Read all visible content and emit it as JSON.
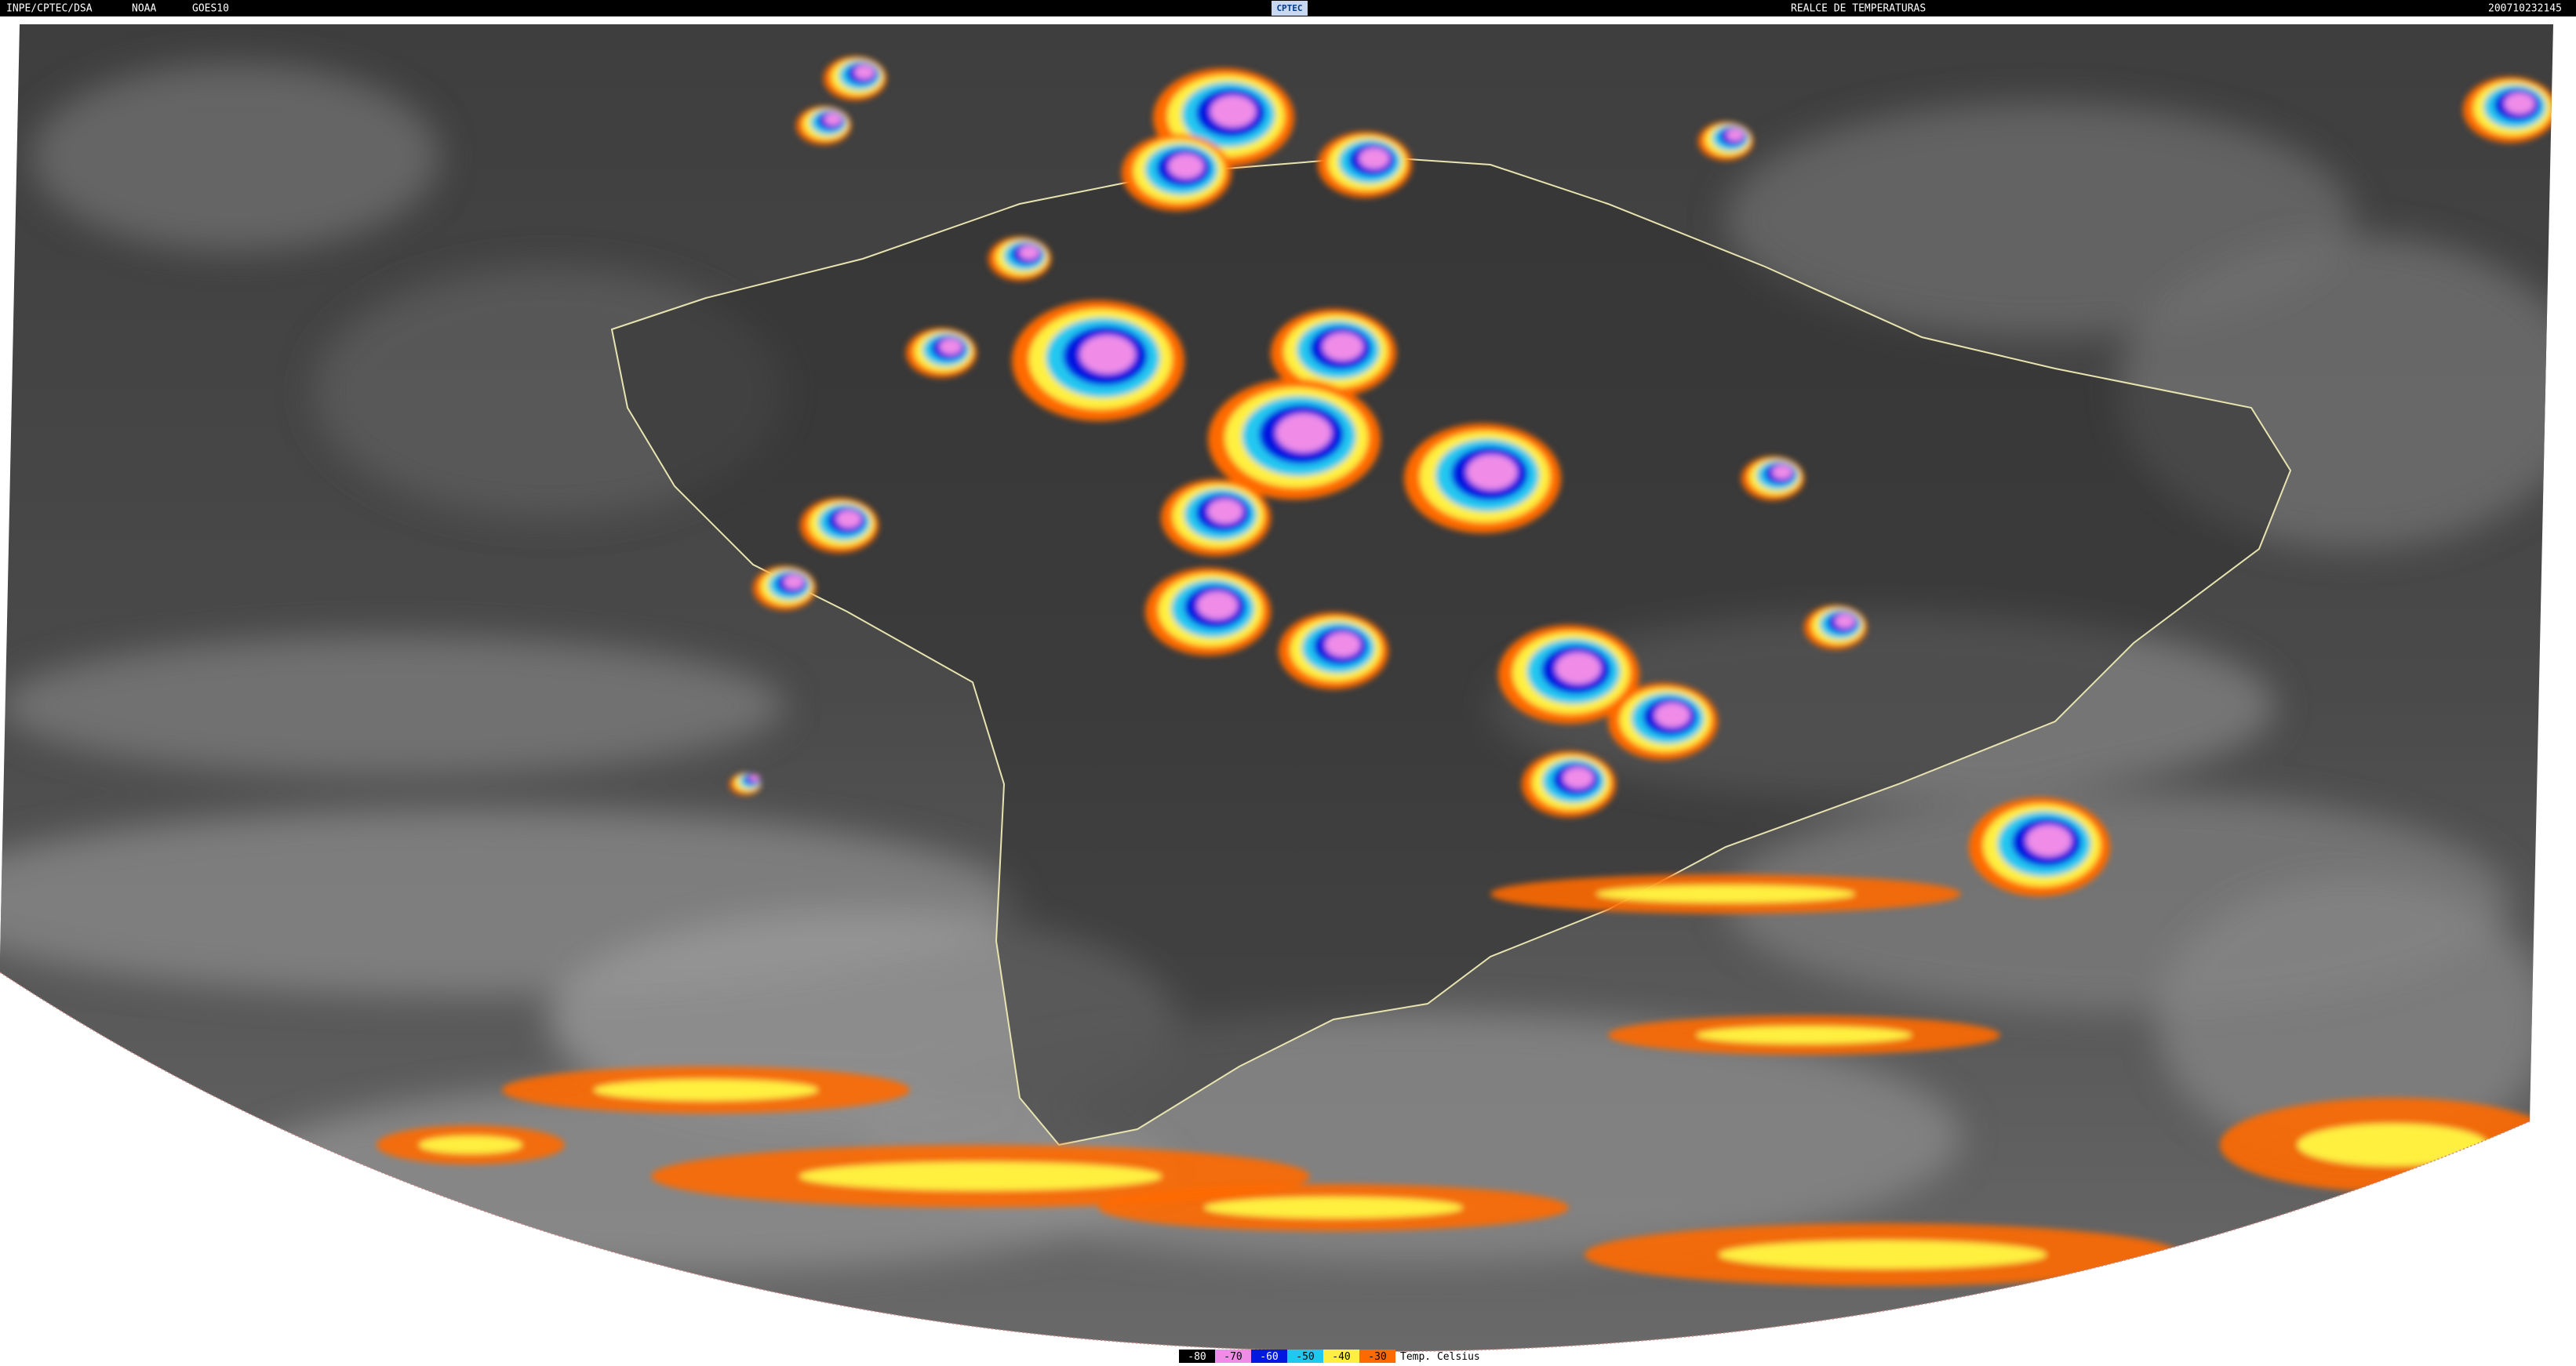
{
  "header": {
    "institution": "INPE/CPTEC/DSA",
    "agency": "NOAA",
    "satellite": "GOES10",
    "logo": "CPTEC",
    "product": "REALCE DE TEMPERATURAS",
    "timestamp": "200710232145"
  },
  "legend": {
    "items": [
      {
        "label": "-80",
        "color": "#000000",
        "text_color": "#ffffff"
      },
      {
        "label": "-70",
        "color": "#f08ce8",
        "text_color": "#000000"
      },
      {
        "label": "-60",
        "color": "#0018e0",
        "text_color": "#ffffff"
      },
      {
        "label": "-50",
        "color": "#20c8f0",
        "text_color": "#000000"
      },
      {
        "label": "-40",
        "color": "#fff040",
        "text_color": "#000000"
      },
      {
        "label": "-30",
        "color": "#ff6a00",
        "text_color": "#000000"
      }
    ],
    "title": "Temp. Celsius"
  }
}
